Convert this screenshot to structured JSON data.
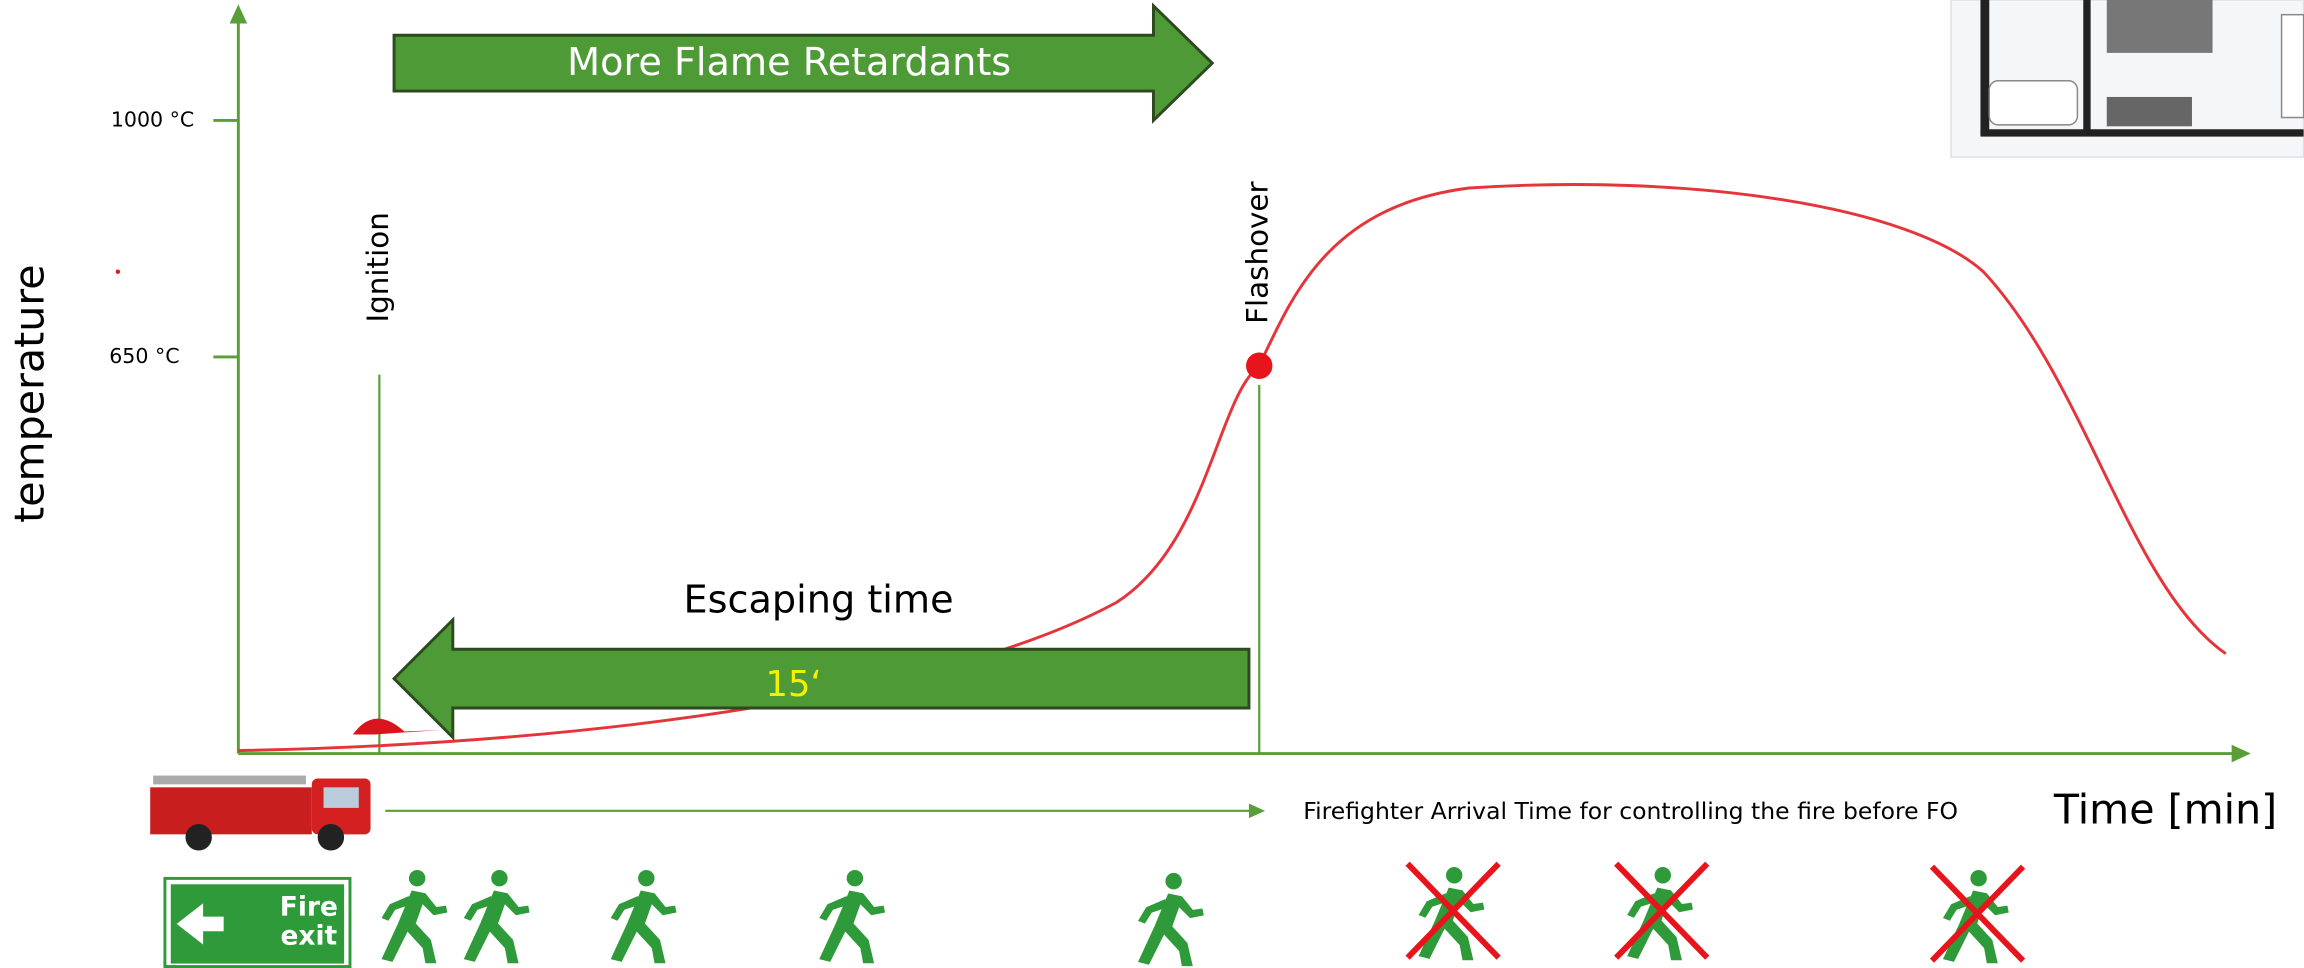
{
  "diagram": {
    "banner": "More Flame Retardants",
    "y_axis_label": "temperature",
    "x_axis_label": "Time [min]",
    "levels": [
      "1000 °C",
      "650 °C"
    ],
    "ignition": "Ignition",
    "flashover": "Flashover",
    "escape": {
      "label": "Escaping time",
      "duration": "15‘"
    },
    "firefighter": "Firefighter Arrival Time for controlling the fire before FO",
    "sign": {
      "line1": "Fire",
      "line2": "exit"
    }
  }
}
